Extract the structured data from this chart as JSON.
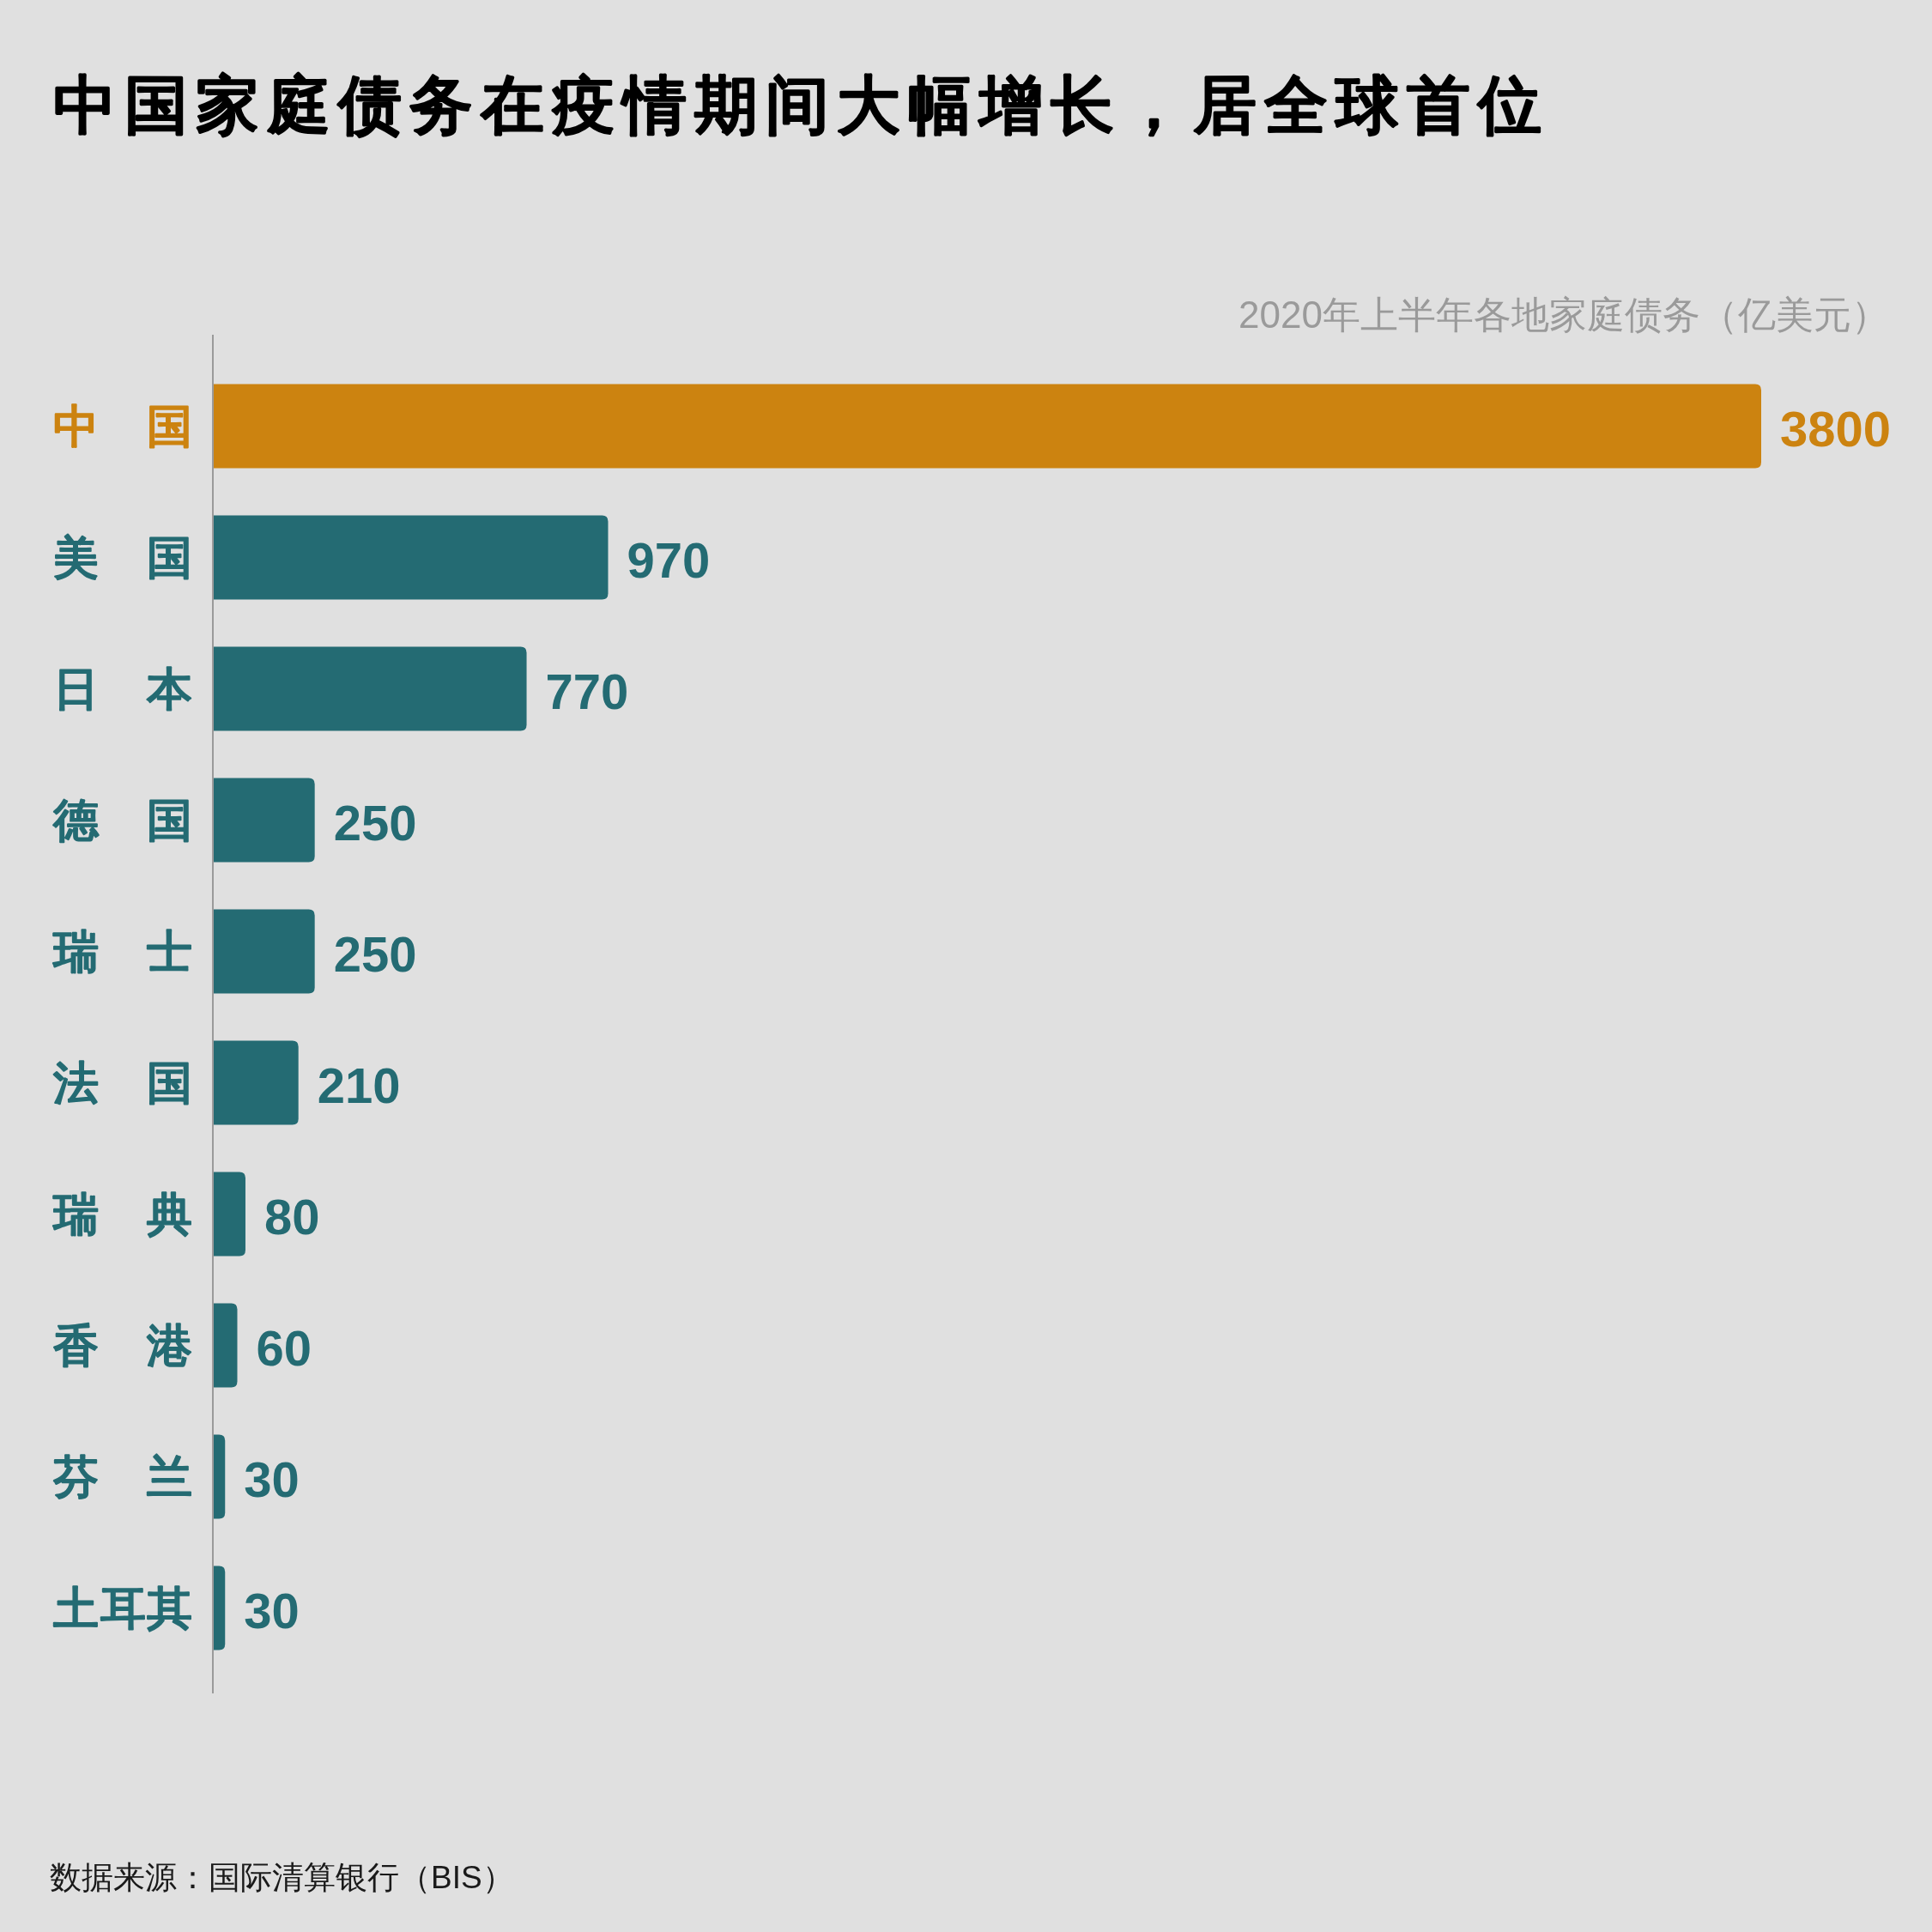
{
  "chart_data": {
    "type": "bar",
    "orientation": "horizontal",
    "title": "中国家庭债务在疫情期间大幅增长，居全球首位",
    "subtitle": "2020年上半年各地家庭债务（亿美元）",
    "categories": [
      "中国",
      "美国",
      "日本",
      "德国",
      "瑞士",
      "法国",
      "瑞典",
      "香港",
      "芬兰",
      "土耳其"
    ],
    "values": [
      3800,
      970,
      770,
      250,
      250,
      210,
      80,
      60,
      30,
      30
    ],
    "colors": [
      "#cc8310",
      "#246b73",
      "#246b73",
      "#246b73",
      "#246b73",
      "#246b73",
      "#246b73",
      "#246b73",
      "#246b73",
      "#246b73"
    ],
    "data_labels": true,
    "annotations": [
      "数据来源：国际清算银行（BIS）"
    ]
  }
}
